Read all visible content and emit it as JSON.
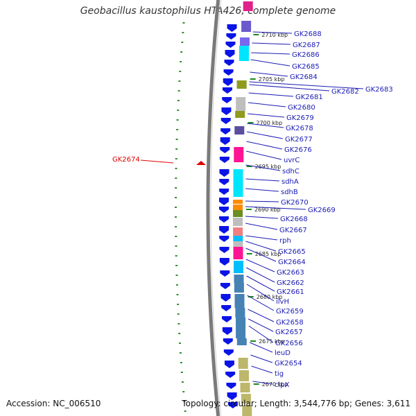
{
  "title": "Geobacillus kaustophilus HTA426, complete genome",
  "accession": "Accession: NC_006510",
  "topology": "Topology: circular; Length: 3,544,776 bp; Genes: 3,611",
  "colors": {
    "backbone": "#808080",
    "strand_cds": "#0a14e6",
    "kbp_tick": "#1a8a1a",
    "gene_label": "#1a1ab5",
    "highlight": "#e00000"
  },
  "kbp_marks": [
    {
      "label": "2710 kbp"
    },
    {
      "label": "2705 kbp"
    },
    {
      "label": "2700 kbp"
    },
    {
      "label": "2695 kbp"
    },
    {
      "label": "2690 kbp"
    },
    {
      "label": "2685 kbp"
    },
    {
      "label": "2680 kbp"
    },
    {
      "label": "2675 kbp"
    },
    {
      "label": "2670 kbp"
    }
  ],
  "gene_labels": [
    {
      "text": "GK2688"
    },
    {
      "text": "GK2687"
    },
    {
      "text": "GK2686"
    },
    {
      "text": "GK2685"
    },
    {
      "text": "GK2684"
    },
    {
      "text": "GK2683"
    },
    {
      "text": "GK2682"
    },
    {
      "text": "GK2681"
    },
    {
      "text": "GK2680"
    },
    {
      "text": "GK2679"
    },
    {
      "text": "GK2678"
    },
    {
      "text": "GK2677"
    },
    {
      "text": "GK2676"
    },
    {
      "text": "uvrC"
    },
    {
      "text": "sdhC"
    },
    {
      "text": "sdhA"
    },
    {
      "text": "sdhB"
    },
    {
      "text": "GK2670"
    },
    {
      "text": "GK2669"
    },
    {
      "text": "GK2668"
    },
    {
      "text": "GK2667"
    },
    {
      "text": "rph"
    },
    {
      "text": "GK2665"
    },
    {
      "text": "GK2664"
    },
    {
      "text": "GK2663"
    },
    {
      "text": "GK2662"
    },
    {
      "text": "GK2661"
    },
    {
      "text": "ilvH"
    },
    {
      "text": "GK2659"
    },
    {
      "text": "GK2658"
    },
    {
      "text": "GK2657"
    },
    {
      "text": "GK2656"
    },
    {
      "text": "leuD"
    },
    {
      "text": "GK2654"
    },
    {
      "text": "tig"
    },
    {
      "text": "clpX"
    }
  ],
  "highlight_label": {
    "text": "GK2674"
  }
}
